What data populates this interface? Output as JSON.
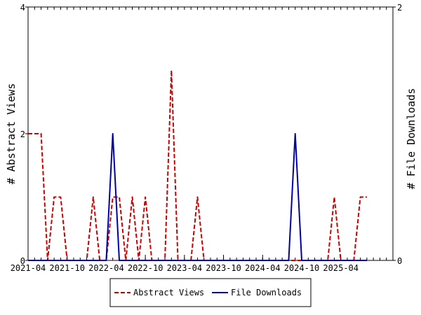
{
  "chart_data": {
    "type": "line",
    "xlabel": "",
    "ylabel_left": "# Abstract Views",
    "ylabel_right": "# File Downloads",
    "ylim_left": [
      0,
      4
    ],
    "ylim_right": [
      0,
      2
    ],
    "yticks_left": [
      "0",
      "2",
      "4"
    ],
    "yticks_right": [
      "0",
      "2"
    ],
    "x_start": "2021-04",
    "x_end": "2025-12",
    "x_tick_labels": [
      "2021-04",
      "2021-10",
      "2022-04",
      "2022-10",
      "2023-04",
      "2023-10",
      "2024-04",
      "2024-10",
      "2025-04"
    ],
    "legend_position": "bottom",
    "grid": false,
    "series": [
      {
        "name": "Abstract Views",
        "axis": "left",
        "color": "#cc0000",
        "style": "dashed",
        "points": [
          [
            "2021-04",
            2
          ],
          [
            "2021-05",
            2
          ],
          [
            "2021-06",
            2
          ],
          [
            "2021-07",
            0
          ],
          [
            "2021-08",
            1
          ],
          [
            "2021-09",
            1
          ],
          [
            "2021-10",
            0
          ],
          [
            "2021-11",
            0
          ],
          [
            "2021-12",
            0
          ],
          [
            "2022-01",
            0
          ],
          [
            "2022-02",
            1
          ],
          [
            "2022-03",
            0
          ],
          [
            "2022-04",
            0
          ],
          [
            "2022-05",
            1
          ],
          [
            "2022-06",
            1
          ],
          [
            "2022-07",
            0
          ],
          [
            "2022-08",
            1
          ],
          [
            "2022-09",
            0
          ],
          [
            "2022-10",
            1
          ],
          [
            "2022-11",
            0
          ],
          [
            "2022-12",
            0
          ],
          [
            "2023-01",
            0
          ],
          [
            "2023-02",
            3
          ],
          [
            "2023-03",
            0
          ],
          [
            "2023-04",
            0
          ],
          [
            "2023-05",
            0
          ],
          [
            "2023-06",
            1
          ],
          [
            "2023-07",
            0
          ],
          [
            "2023-08",
            0
          ],
          [
            "2023-09",
            0
          ],
          [
            "2023-10",
            0
          ],
          [
            "2023-11",
            0
          ],
          [
            "2023-12",
            0
          ],
          [
            "2024-01",
            0
          ],
          [
            "2024-02",
            0
          ],
          [
            "2024-03",
            0
          ],
          [
            "2024-04",
            0
          ],
          [
            "2024-05",
            0
          ],
          [
            "2024-06",
            0
          ],
          [
            "2024-07",
            0
          ],
          [
            "2024-08",
            0
          ],
          [
            "2024-09",
            0
          ],
          [
            "2024-10",
            0
          ],
          [
            "2024-11",
            0
          ],
          [
            "2024-12",
            0
          ],
          [
            "2025-01",
            0
          ],
          [
            "2025-02",
            0
          ],
          [
            "2025-03",
            1
          ],
          [
            "2025-04",
            0
          ],
          [
            "2025-05",
            0
          ],
          [
            "2025-06",
            0
          ],
          [
            "2025-07",
            1
          ],
          [
            "2025-08",
            1
          ]
        ]
      },
      {
        "name": "File Downloads",
        "axis": "right",
        "color": "#0000aa",
        "style": "solid",
        "points": [
          [
            "2021-04",
            0
          ],
          [
            "2021-05",
            0
          ],
          [
            "2021-06",
            0
          ],
          [
            "2021-07",
            0
          ],
          [
            "2021-08",
            0
          ],
          [
            "2021-09",
            0
          ],
          [
            "2021-10",
            0
          ],
          [
            "2021-11",
            0
          ],
          [
            "2021-12",
            0
          ],
          [
            "2022-01",
            0
          ],
          [
            "2022-02",
            0
          ],
          [
            "2022-03",
            0
          ],
          [
            "2022-04",
            0
          ],
          [
            "2022-05",
            1
          ],
          [
            "2022-06",
            0
          ],
          [
            "2022-07",
            0
          ],
          [
            "2022-08",
            0
          ],
          [
            "2022-09",
            0
          ],
          [
            "2022-10",
            0
          ],
          [
            "2022-11",
            0
          ],
          [
            "2022-12",
            0
          ],
          [
            "2023-01",
            0
          ],
          [
            "2023-02",
            0
          ],
          [
            "2023-03",
            0
          ],
          [
            "2023-04",
            0
          ],
          [
            "2023-05",
            0
          ],
          [
            "2023-06",
            0
          ],
          [
            "2023-07",
            0
          ],
          [
            "2023-08",
            0
          ],
          [
            "2023-09",
            0
          ],
          [
            "2023-10",
            0
          ],
          [
            "2023-11",
            0
          ],
          [
            "2023-12",
            0
          ],
          [
            "2024-01",
            0
          ],
          [
            "2024-02",
            0
          ],
          [
            "2024-03",
            0
          ],
          [
            "2024-04",
            0
          ],
          [
            "2024-05",
            0
          ],
          [
            "2024-06",
            0
          ],
          [
            "2024-07",
            0
          ],
          [
            "2024-08",
            0
          ],
          [
            "2024-09",
            1
          ],
          [
            "2024-10",
            0
          ],
          [
            "2024-11",
            0
          ],
          [
            "2024-12",
            0
          ],
          [
            "2025-01",
            0
          ],
          [
            "2025-02",
            0
          ],
          [
            "2025-03",
            0
          ],
          [
            "2025-04",
            0
          ],
          [
            "2025-05",
            0
          ],
          [
            "2025-06",
            0
          ],
          [
            "2025-07",
            0
          ],
          [
            "2025-08",
            0
          ]
        ]
      }
    ]
  }
}
